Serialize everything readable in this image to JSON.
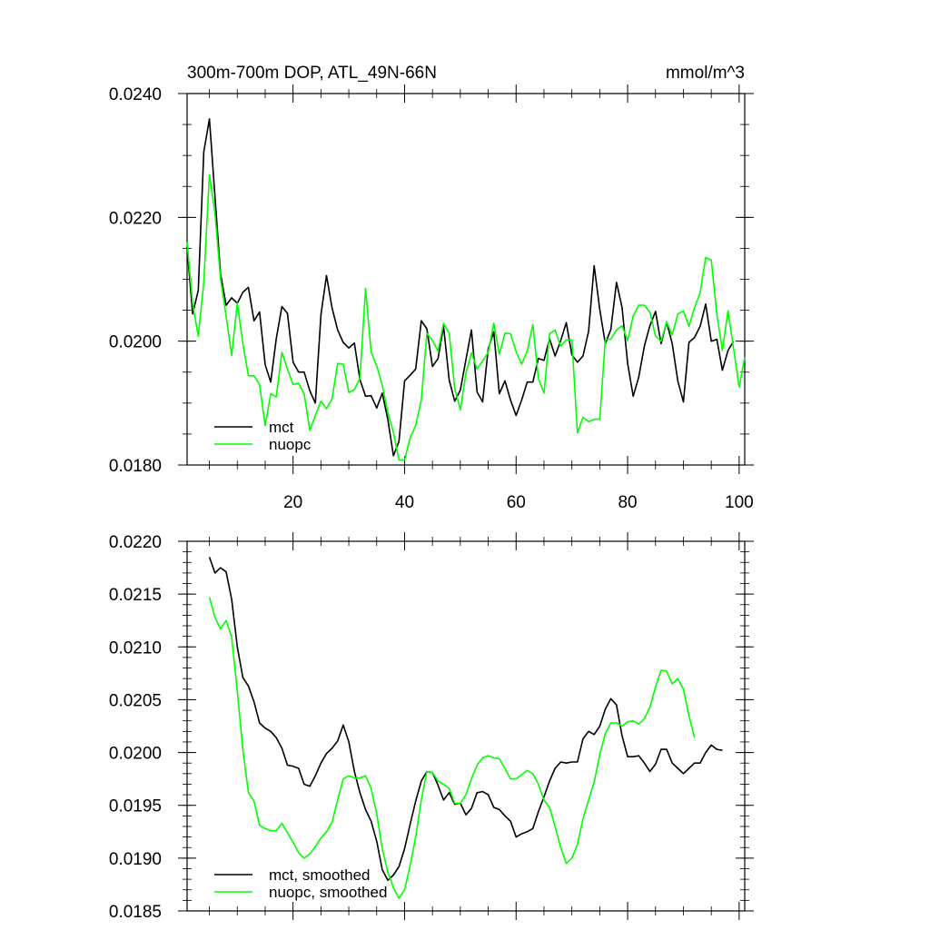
{
  "chart_data": [
    {
      "type": "line",
      "title": "300m-700m DOP, ATL_49N-66N",
      "units": "mmol/m^3",
      "xlabel": "",
      "ylabel": "",
      "xlim": [
        1,
        101
      ],
      "ylim": [
        0.018,
        0.024
      ],
      "x_ticks": [
        20,
        40,
        60,
        80,
        100
      ],
      "x_tick_labels": [
        "20",
        "40",
        "60",
        "80",
        "100"
      ],
      "y_ticks": [
        0.018,
        0.02,
        0.022,
        0.024
      ],
      "y_tick_labels": [
        "0.0180",
        "0.0200",
        "0.0220",
        "0.0240"
      ],
      "legend_position": "bottom-left",
      "series": [
        {
          "name": "mct",
          "color": "#000000",
          "x_start": 1,
          "values": [
            0.02152,
            0.02044,
            0.02082,
            0.02306,
            0.02359,
            0.02234,
            0.02109,
            0.02058,
            0.0207,
            0.02061,
            0.02079,
            0.02087,
            0.02033,
            0.02047,
            0.01962,
            0.01934,
            0.02004,
            0.02056,
            0.02045,
            0.01966,
            0.0195,
            0.0195,
            0.0192,
            0.019,
            0.02043,
            0.02106,
            0.02054,
            0.02018,
            0.01998,
            0.01989,
            0.01997,
            0.01938,
            0.01911,
            0.01912,
            0.01892,
            0.01916,
            0.01874,
            0.01815,
            0.01838,
            0.01936,
            0.01945,
            0.01955,
            0.02033,
            0.0202,
            0.01959,
            0.01972,
            0.02024,
            0.01937,
            0.01903,
            0.01921,
            0.0197,
            0.02018,
            0.01918,
            0.01902,
            0.01988,
            0.02015,
            0.01915,
            0.01936,
            0.01905,
            0.0188,
            0.01905,
            0.01934,
            0.01934,
            0.01972,
            0.01969,
            0.02004,
            0.01976,
            0.02001,
            0.0203,
            0.01978,
            0.01966,
            0.01976,
            0.02016,
            0.02122,
            0.02051,
            0.01996,
            0.02019,
            0.02095,
            0.02055,
            0.01964,
            0.01911,
            0.01942,
            0.01992,
            0.02025,
            0.02048,
            0.01996,
            0.02031,
            0.01996,
            0.01936,
            0.01902,
            0.01998,
            0.02006,
            0.02024,
            0.0206,
            0.02,
            0.02003,
            0.01953,
            0.01985,
            0.02
          ]
        },
        {
          "name": "nuopc",
          "color": "#00ff00",
          "x_start": 1,
          "values": [
            0.0216,
            0.02061,
            0.02008,
            0.02096,
            0.02269,
            0.02207,
            0.02101,
            0.0204,
            0.01977,
            0.02062,
            0.01996,
            0.01944,
            0.01944,
            0.0193,
            0.01864,
            0.01915,
            0.0191,
            0.01982,
            0.01955,
            0.0193,
            0.01932,
            0.01915,
            0.01856,
            0.0188,
            0.01903,
            0.01891,
            0.01907,
            0.01964,
            0.01963,
            0.01917,
            0.01922,
            0.0194,
            0.02085,
            0.01983,
            0.0196,
            0.01929,
            0.01885,
            0.01853,
            0.01808,
            0.01808,
            0.01844,
            0.01864,
            0.01905,
            0.02013,
            0.02001,
            0.01984,
            0.02029,
            0.02013,
            0.01924,
            0.01889,
            0.01948,
            0.01981,
            0.01955,
            0.01968,
            0.01982,
            0.02029,
            0.01979,
            0.02013,
            0.02012,
            0.01983,
            0.01963,
            0.01984,
            0.02027,
            0.0194,
            0.01916,
            0.02012,
            0.02018,
            0.01992,
            0.02002,
            0.02002,
            0.01852,
            0.01877,
            0.0187,
            0.01874,
            0.01874,
            0.02003,
            0.02003,
            0.02018,
            0.02025,
            0.02001,
            0.02041,
            0.02058,
            0.02058,
            0.02047,
            0.02008,
            0.02,
            0.02031,
            0.0201,
            0.02044,
            0.02049,
            0.02024,
            0.02054,
            0.02078,
            0.02135,
            0.02131,
            0.02043,
            0.01985,
            0.02049,
            0.01988,
            0.01926,
            0.01974
          ]
        }
      ],
      "legend": [
        "mct",
        "nuopc"
      ]
    },
    {
      "type": "line",
      "title": "",
      "xlabel": "",
      "ylabel": "",
      "xlim": [
        1,
        101
      ],
      "ylim": [
        0.0185,
        0.022
      ],
      "x_ticks": [
        20,
        40,
        60,
        80,
        100
      ],
      "x_tick_labels": [],
      "y_ticks": [
        0.0185,
        0.019,
        0.0195,
        0.02,
        0.0205,
        0.021,
        0.0215,
        0.022
      ],
      "y_tick_labels": [
        "0.0185",
        "0.0190",
        "0.0195",
        "0.0200",
        "0.0205",
        "0.0210",
        "0.0215",
        "0.0220"
      ],
      "legend_position": "bottom-left",
      "series": [
        {
          "name": "mct, smoothed",
          "color": "#000000",
          "x_start": 5,
          "values": [
            0.02185,
            0.0217,
            0.02175,
            0.02171,
            0.02145,
            0.021,
            0.02071,
            0.02063,
            0.02048,
            0.02028,
            0.02023,
            0.0202,
            0.02014,
            0.02004,
            0.01988,
            0.01987,
            0.01985,
            0.0197,
            0.01968,
            0.01978,
            0.0199,
            0.01999,
            0.02004,
            0.02011,
            0.02026,
            0.0201,
            0.01982,
            0.01962,
            0.01946,
            0.01935,
            0.01916,
            0.01889,
            0.01879,
            0.01884,
            0.01892,
            0.01909,
            0.01932,
            0.01954,
            0.01973,
            0.01982,
            0.01981,
            0.01969,
            0.01955,
            0.01962,
            0.01951,
            0.01952,
            0.01941,
            0.01947,
            0.01962,
            0.01963,
            0.0196,
            0.01948,
            0.01946,
            0.0194,
            0.01935,
            0.0192,
            0.01923,
            0.01925,
            0.01928,
            0.01944,
            0.01958,
            0.01973,
            0.01985,
            0.01991,
            0.0199,
            0.01991,
            0.01991,
            0.02013,
            0.0202,
            0.02017,
            0.02025,
            0.02041,
            0.02051,
            0.02045,
            0.02016,
            0.01996,
            0.01996,
            0.01997,
            0.0199,
            0.01982,
            0.01989,
            0.02003,
            0.02003,
            0.0199,
            0.01985,
            0.0198,
            0.01985,
            0.0199,
            0.0199,
            0.02,
            0.02007,
            0.02003,
            0.02002
          ]
        },
        {
          "name": "nuopc, smoothed",
          "color": "#00ff00",
          "x_start": 5,
          "values": [
            0.02147,
            0.02128,
            0.02117,
            0.02125,
            0.02109,
            0.02058,
            0.02003,
            0.01962,
            0.01954,
            0.01931,
            0.01928,
            0.01926,
            0.01926,
            0.01933,
            0.01924,
            0.01915,
            0.01905,
            0.019,
            0.01904,
            0.01911,
            0.01919,
            0.01925,
            0.01934,
            0.01955,
            0.01975,
            0.01978,
            0.01976,
            0.01976,
            0.01978,
            0.01966,
            0.01942,
            0.01909,
            0.01887,
            0.01872,
            0.01862,
            0.0187,
            0.01893,
            0.0192,
            0.01955,
            0.01982,
            0.01981,
            0.01973,
            0.0197,
            0.01966,
            0.01952,
            0.01952,
            0.0196,
            0.01975,
            0.01988,
            0.01995,
            0.01997,
            0.01995,
            0.01994,
            0.01985,
            0.01975,
            0.01975,
            0.01979,
            0.01983,
            0.0198,
            0.0197,
            0.01955,
            0.01948,
            0.0193,
            0.0191,
            0.01895,
            0.019,
            0.01913,
            0.01937,
            0.01955,
            0.01972,
            0.01998,
            0.02018,
            0.02028,
            0.02028,
            0.02025,
            0.02029,
            0.0203,
            0.02027,
            0.02032,
            0.02043,
            0.02062,
            0.02078,
            0.02077,
            0.02065,
            0.0207,
            0.0206,
            0.02035,
            0.02014
          ]
        }
      ],
      "legend": [
        "mct, smoothed",
        "nuopc, smoothed"
      ]
    }
  ]
}
